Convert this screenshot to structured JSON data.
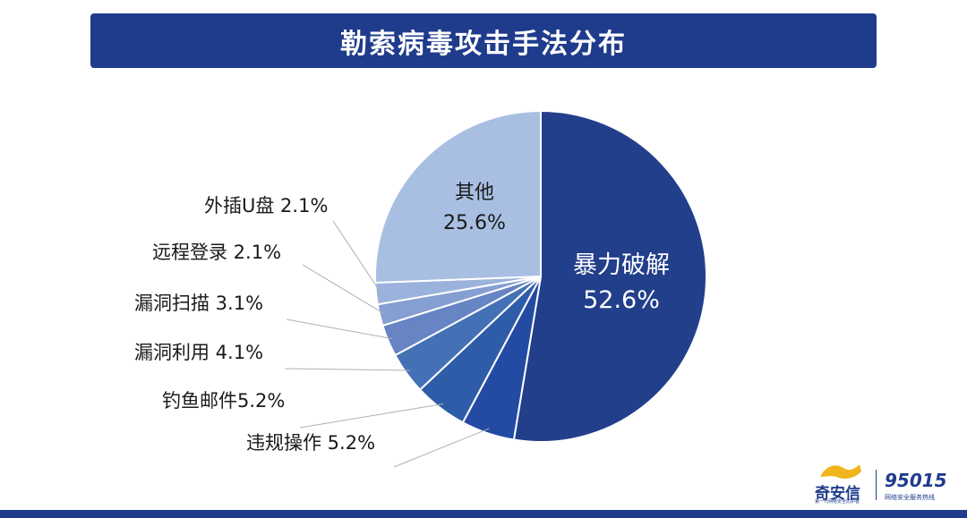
{
  "header": {
    "title": "勒索病毒攻击手法分布"
  },
  "chart_data": {
    "type": "pie",
    "title": "勒索病毒攻击手法分布",
    "slices": [
      {
        "name": "暴力破解",
        "value": 52.6,
        "label": "52.6%",
        "color": "#223f8b"
      },
      {
        "name": "违规操作",
        "value": 5.2,
        "label": "5.2%",
        "color": "#234ba3"
      },
      {
        "name": "钓鱼邮件",
        "value": 5.2,
        "label": "5.2%",
        "color": "#2f5ca8"
      },
      {
        "name": "漏洞利用",
        "value": 4.1,
        "label": "4.1%",
        "color": "#4471b6"
      },
      {
        "name": "漏洞扫描",
        "value": 3.1,
        "label": "3.1%",
        "color": "#6784c4"
      },
      {
        "name": "远程登录",
        "value": 2.1,
        "label": "2.1%",
        "color": "#869fd2"
      },
      {
        "name": "外插U盘",
        "value": 2.1,
        "label": "2.1%",
        "color": "#9ab2dc"
      },
      {
        "name": "其他",
        "value": 25.6,
        "label": "25.6%",
        "color": "#a8bfe2"
      }
    ],
    "outside_labels": {
      "违规操作": "违规操作 5.2%",
      "钓鱼邮件": "钓鱼邮件5.2%",
      "漏洞利用": "漏洞利用 4.1%",
      "漏洞扫描": "漏洞扫描 3.1%",
      "远程登录": "远程登录 2.1%",
      "外插U盘": "外插U盘 2.1%"
    }
  },
  "logo": {
    "brand": "奇安信",
    "tagline": "第一代网络安全防护者",
    "hotline": "95015",
    "hotline_caption": "网络安全服务热线"
  }
}
